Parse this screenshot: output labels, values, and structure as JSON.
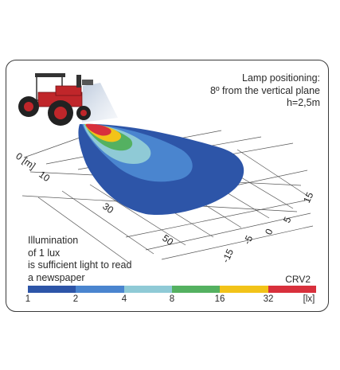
{
  "lamp_info": {
    "line1": "Lamp positioning:",
    "line2": "8º from the vertical plane",
    "line3": "h=2,5m"
  },
  "note": {
    "line1": "Illumination",
    "line2": "of 1 lux",
    "line3": "is sufficient light to read",
    "line4": "a newspaper"
  },
  "model": "CRV2",
  "distance_axis": {
    "labels": [
      "0 [m]",
      "10",
      "30",
      "50"
    ]
  },
  "lateral_axis": {
    "labels": [
      "15",
      "5",
      "0",
      "-5",
      "-15"
    ]
  },
  "legend": {
    "unit": "[lx]",
    "ticks": [
      "1",
      "2",
      "4",
      "8",
      "16",
      "32"
    ],
    "colors": [
      "#2d55a8",
      "#4a85cf",
      "#8fcad6",
      "#54b161",
      "#f2c318",
      "#d8303c"
    ]
  },
  "tractor": {
    "body_color": "#c0262a",
    "tire_color": "#222222"
  }
}
